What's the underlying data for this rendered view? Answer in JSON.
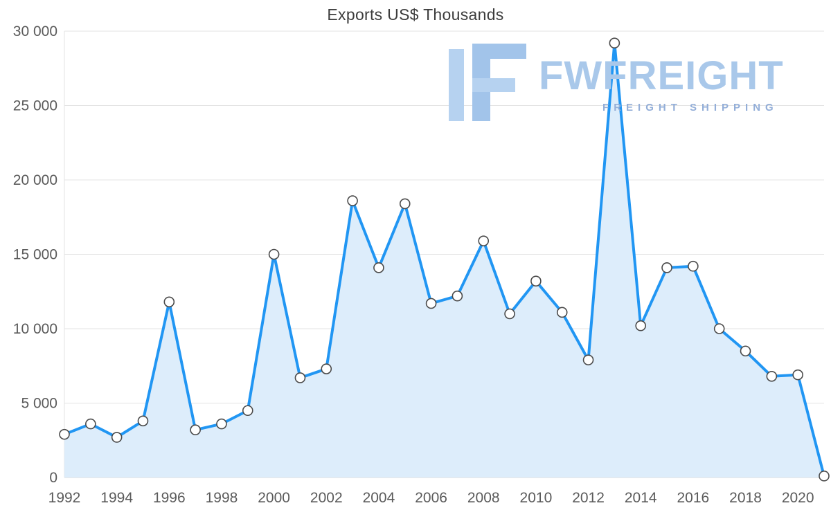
{
  "chart_data": {
    "type": "area",
    "title": "Exports US$ Thousands",
    "x": [
      1992,
      1993,
      1994,
      1995,
      1996,
      1997,
      1998,
      1999,
      2000,
      2001,
      2002,
      2003,
      2004,
      2005,
      2006,
      2007,
      2008,
      2009,
      2010,
      2011,
      2012,
      2013,
      2014,
      2015,
      2016,
      2017,
      2018,
      2019,
      2020,
      2021
    ],
    "series": [
      {
        "name": "Exports US$ Thousands",
        "values": [
          2900,
          3600,
          2700,
          3800,
          11800,
          3200,
          3600,
          4500,
          15000,
          6700,
          7300,
          18600,
          14100,
          18400,
          11700,
          12200,
          15900,
          11000,
          13200,
          11100,
          7900,
          29200,
          10200,
          14100,
          14200,
          10000,
          8500,
          6800,
          6900,
          100
        ]
      }
    ],
    "ylim": [
      0,
      30000
    ],
    "y_tick_interval": 5000,
    "y_tick_labels": [
      "0",
      "5 000",
      "10 000",
      "15 000",
      "20 000",
      "25 000",
      "30 000"
    ],
    "x_tick_labels": [
      "1992",
      "1994",
      "1996",
      "1998",
      "2000",
      "2002",
      "2004",
      "2006",
      "2008",
      "2010",
      "2012",
      "2014",
      "2016",
      "2018",
      "2020"
    ],
    "grid": "horizontal",
    "legend": "none",
    "line_color": "#2196f3",
    "fill_color": "#ddedfb",
    "marker_fill": "#ffffff",
    "marker_stroke": "#4a4a4a",
    "grid_color": "#e3e3e3",
    "axis_color": "#cfcfcf",
    "label_color": "#5a5a5a"
  },
  "watermark": {
    "brand": "FWFREIGHT",
    "tagline": "FREIGHT SHIPPING"
  }
}
